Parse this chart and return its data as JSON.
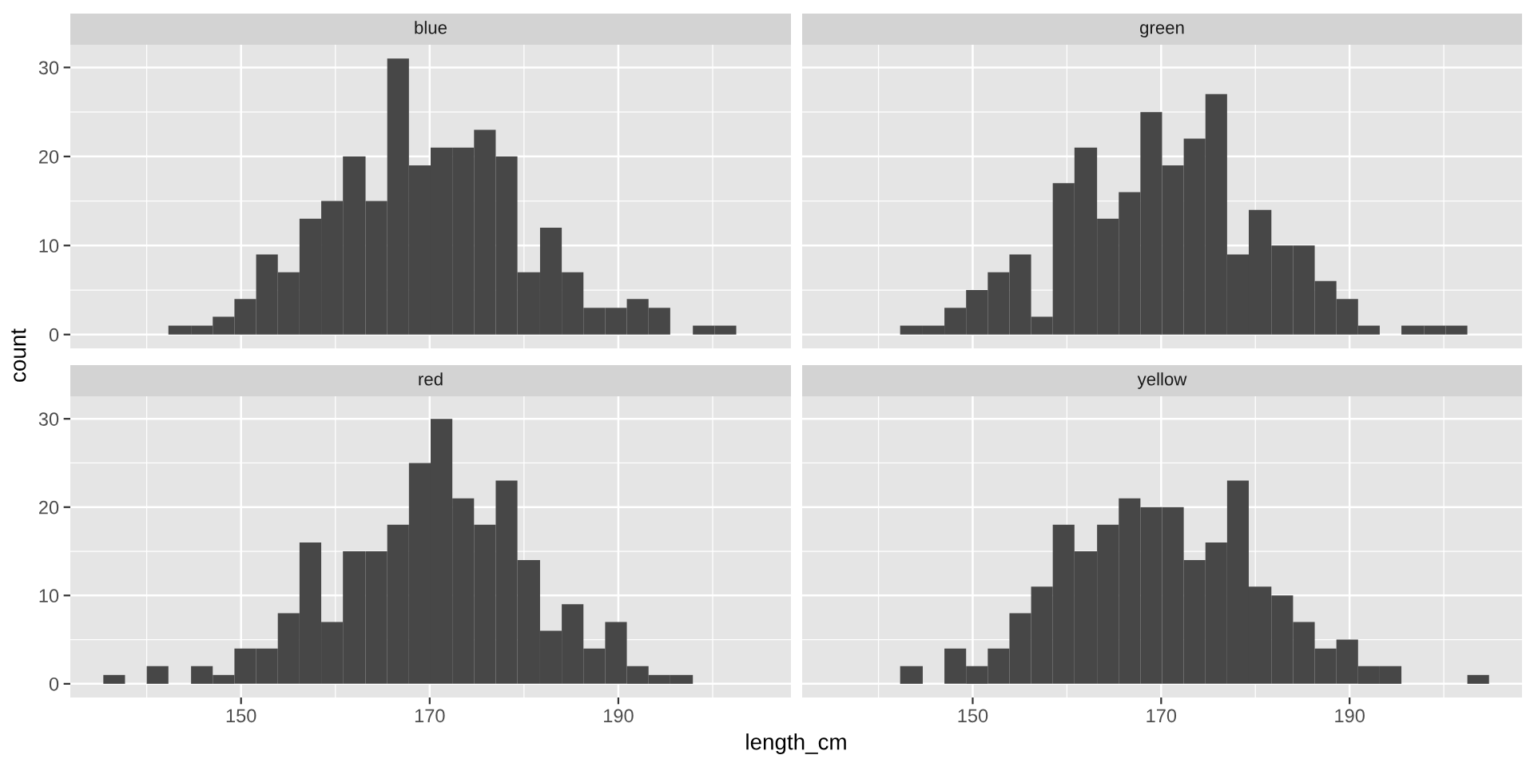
{
  "chart_data": [
    {
      "type": "histogram",
      "title": "blue",
      "ylabel": "count",
      "color": "#474747",
      "bins": [
        142.3,
        144.7,
        147.0,
        149.3,
        151.6,
        153.9,
        156.2,
        158.5,
        160.8,
        163.2,
        165.5,
        167.8,
        170.1,
        172.4,
        174.7,
        177.0,
        179.3,
        181.7,
        184.0,
        186.3,
        188.6,
        190.9,
        193.2,
        195.5,
        197.9,
        200.2,
        202.5
      ],
      "values": [
        1,
        1,
        2,
        4,
        9,
        7,
        13,
        15,
        20,
        15,
        31,
        19,
        21,
        21,
        23,
        20,
        7,
        12,
        7,
        3,
        3,
        4,
        3,
        0,
        1,
        1
      ],
      "xlim": [
        131.9,
        208.3
      ],
      "ylim": [
        -1.55,
        32.55
      ],
      "xticks": [
        150,
        170,
        190
      ],
      "yticks": [
        0,
        10,
        20,
        30
      ],
      "grid": true,
      "tick_labels": "y"
    },
    {
      "type": "histogram",
      "title": "green",
      "color": "#474747",
      "bins": [
        142.3,
        144.7,
        147.0,
        149.3,
        151.6,
        153.9,
        156.2,
        158.5,
        160.8,
        163.2,
        165.5,
        167.8,
        170.1,
        172.4,
        174.7,
        177.0,
        179.3,
        181.7,
        184.0,
        186.3,
        188.6,
        190.9,
        193.2,
        195.5,
        197.9,
        200.2,
        202.5
      ],
      "values": [
        1,
        1,
        3,
        5,
        7,
        9,
        2,
        17,
        21,
        13,
        16,
        25,
        19,
        22,
        27,
        9,
        14,
        10,
        10,
        6,
        4,
        1,
        0,
        1,
        1,
        1
      ],
      "xlim": [
        131.9,
        208.3
      ],
      "ylim": [
        -1.55,
        32.55
      ],
      "xticks": [
        150,
        170,
        190
      ],
      "yticks": [
        0,
        10,
        20,
        30
      ],
      "grid": true,
      "tick_labels": false
    },
    {
      "type": "histogram",
      "title": "red",
      "xlabel": "length_cm",
      "color": "#474747",
      "bins": [
        135.4,
        137.7,
        140.0,
        142.3,
        144.7,
        147.0,
        149.3,
        151.6,
        153.9,
        156.2,
        158.5,
        160.8,
        163.2,
        165.5,
        167.8,
        170.1,
        172.4,
        174.7,
        177.0,
        179.3,
        181.7,
        184.0,
        186.3,
        188.6,
        190.9,
        193.2,
        195.5,
        197.9
      ],
      "values": [
        1,
        0,
        2,
        0,
        2,
        1,
        4,
        4,
        8,
        16,
        7,
        15,
        15,
        18,
        25,
        30,
        21,
        18,
        23,
        14,
        6,
        9,
        4,
        7,
        2,
        1,
        1
      ],
      "xlim": [
        131.9,
        208.3
      ],
      "ylim": [
        -1.55,
        32.55
      ],
      "xticks": [
        150,
        170,
        190
      ],
      "yticks": [
        0,
        10,
        20,
        30
      ],
      "grid": true
    },
    {
      "type": "histogram",
      "title": "yellow",
      "color": "#474747",
      "bins": [
        142.3,
        144.7,
        147.0,
        149.3,
        151.6,
        153.9,
        156.2,
        158.5,
        160.8,
        163.2,
        165.5,
        167.8,
        170.1,
        172.4,
        174.7,
        177.0,
        179.3,
        181.7,
        184.0,
        186.3,
        188.6,
        190.9,
        193.2,
        195.5,
        202.5,
        204.8
      ],
      "values": [
        2,
        0,
        4,
        2,
        4,
        8,
        11,
        18,
        15,
        18,
        21,
        20,
        20,
        14,
        16,
        23,
        11,
        10,
        7,
        4,
        5,
        2,
        2,
        0,
        1
      ],
      "xlim": [
        131.9,
        208.3
      ],
      "ylim": [
        -1.55,
        32.55
      ],
      "xticks": [
        150,
        170,
        190
      ],
      "yticks": [
        0,
        10,
        20,
        30
      ],
      "grid": true,
      "tick_labels": "x"
    }
  ]
}
